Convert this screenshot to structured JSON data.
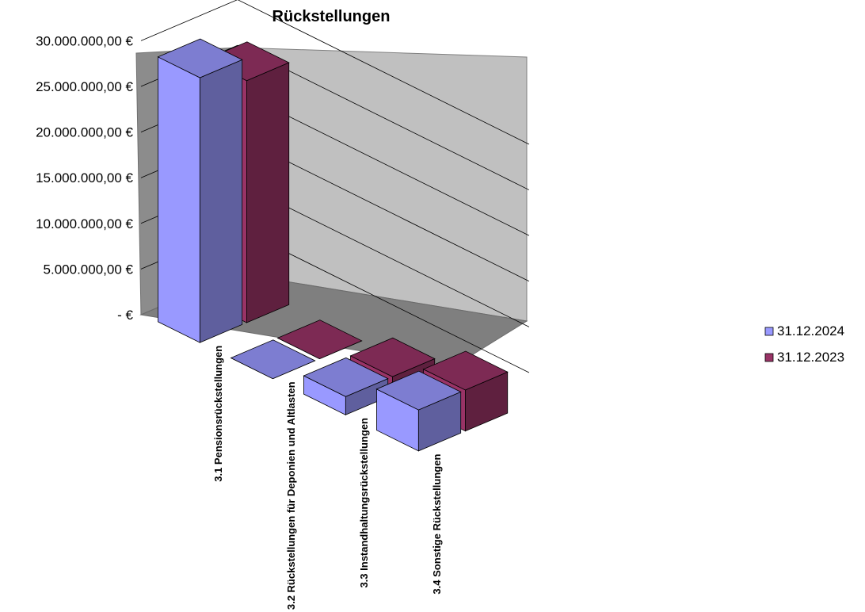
{
  "colors": {
    "series_2024": "#9999ff",
    "series_2023": "#993366",
    "wall_back": "#c0c0c0",
    "wall_side": "#8c8c8c",
    "floor": "#7f7f7f"
  },
  "chart_data": {
    "type": "bar",
    "title": "Rückstellungen",
    "y_ticks": [
      "30.000.000,00 €",
      "25.000.000,00 €",
      "20.000.000,00 €",
      "15.000.000,00 €",
      "10.000.000,00 €",
      "5.000.000,00 €",
      "-   €"
    ],
    "ylim": [
      0,
      30000000
    ],
    "grid": true,
    "legend_position": "right",
    "categories": [
      "3.1  Pensionsrückstellungen",
      "3.2  Rückstellungen für Deponien und Altlasten",
      "3.3  Instandhaltungsrückstellungen",
      "3.4  Sonstige Rückstellungen"
    ],
    "series": [
      {
        "name": "31.12.2024",
        "values": [
          29000000,
          0,
          2000000,
          4500000
        ]
      },
      {
        "name": "31.12.2023",
        "values": [
          26500000,
          0,
          2000000,
          4500000
        ]
      }
    ]
  }
}
